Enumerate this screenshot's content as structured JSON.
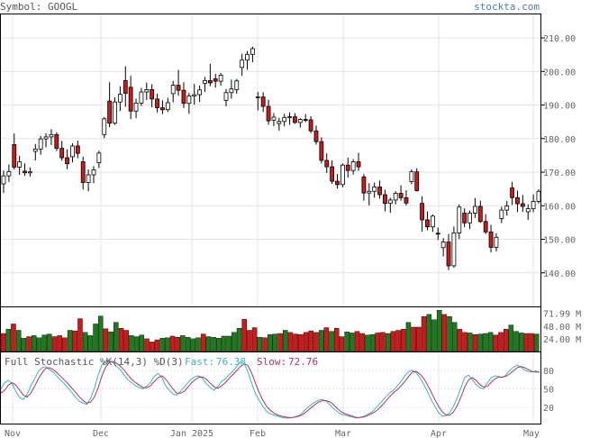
{
  "header": {
    "symbol_label": "Symbol: GOOGL",
    "site": "stockta.com"
  },
  "colors": {
    "up": "#1f7a1f",
    "down": "#cc1a1a",
    "up_fill": "#ffffff",
    "stoch_fast": "#3cb3c7",
    "stoch_slow": "#b0335a"
  },
  "chart_data": [
    {
      "type": "candlestick",
      "title": "",
      "x_ticks": [
        "Nov",
        "Dec",
        "Jan 2025",
        "Feb",
        "Mar",
        "Apr",
        "May"
      ],
      "y_ticks": [
        "210.00",
        "200.00",
        "190.00",
        "180.00",
        "170.00",
        "160.00",
        "150.00",
        "140.00"
      ],
      "ylim": [
        130,
        217
      ],
      "grid": true,
      "ohlc": [
        [
          166.5,
          170.5,
          163.8,
          168.9
        ],
        [
          168.9,
          172.3,
          167.1,
          170.2
        ],
        [
          178.2,
          181.5,
          170.8,
          171.5
        ],
        [
          171.5,
          174.9,
          169.2,
          173.1
        ],
        [
          170.3,
          172.6,
          168.9,
          169.8
        ],
        [
          169.8,
          171.4,
          168.7,
          170.1
        ],
        [
          176.2,
          178.4,
          173.5,
          176.9
        ],
        [
          176.9,
          180.8,
          175.2,
          179.9
        ],
        [
          179.9,
          181.6,
          177.4,
          180.5
        ],
        [
          180.5,
          182.8,
          178.1,
          181.2
        ],
        [
          181.2,
          181.9,
          176.3,
          177.1
        ],
        [
          177.1,
          179.3,
          173.4,
          174.3
        ],
        [
          174.3,
          176.8,
          170.9,
          172.5
        ],
        [
          174.6,
          178.6,
          172.9,
          177.8
        ],
        [
          177.8,
          179.4,
          174.2,
          175.6
        ],
        [
          173.1,
          174.6,
          164.8,
          166.9
        ],
        [
          166.9,
          170.8,
          164.3,
          169.2
        ],
        [
          169.2,
          171.8,
          166.7,
          170.7
        ],
        [
          172.8,
          176.4,
          171.2,
          175.7
        ],
        [
          181.2,
          186.4,
          180.1,
          185.9
        ],
        [
          191.2,
          196.8,
          183.4,
          184.6
        ],
        [
          184.6,
          192.3,
          184.1,
          190.9
        ],
        [
          190.9,
          195.6,
          188.2,
          193.2
        ],
        [
          197.3,
          201.6,
          189.5,
          193.5
        ],
        [
          195.3,
          198.7,
          185.8,
          188.2
        ],
        [
          188.2,
          191.9,
          186.1,
          190.6
        ],
        [
          190.6,
          195.1,
          189.7,
          193.9
        ],
        [
          193.9,
          196.7,
          191.5,
          194.6
        ],
        [
          194.6,
          196.2,
          189.3,
          191.8
        ],
        [
          191.8,
          193.4,
          187.8,
          189.2
        ],
        [
          189.2,
          191.4,
          187.3,
          188.6
        ],
        [
          188.6,
          192.2,
          187.9,
          190.7
        ],
        [
          193.4,
          197.2,
          190.8,
          195.9
        ],
        [
          195.9,
          200.5,
          192.8,
          194.4
        ],
        [
          194.4,
          196.8,
          189.1,
          190.5
        ],
        [
          190.5,
          193.6,
          187.4,
          192.7
        ],
        [
          192.7,
          196.3,
          190.1,
          193.1
        ],
        [
          193.1,
          195.8,
          190.9,
          194.5
        ],
        [
          196.5,
          198.4,
          193.9,
          197.3
        ],
        [
          197.3,
          202.3,
          195.6,
          196.6
        ],
        [
          197.8,
          199.3,
          195.2,
          197.1
        ],
        [
          197.1,
          199.6,
          195.8,
          198.9
        ],
        [
          191.4,
          194.8,
          189.6,
          193.7
        ],
        [
          193.7,
          197.6,
          191.9,
          194.8
        ],
        [
          194.6,
          197.8,
          193.4,
          197.2
        ],
        [
          201.2,
          205.3,
          198.7,
          203.4
        ],
        [
          203.4,
          206.1,
          200.5,
          205.1
        ],
        [
          205.1,
          207.4,
          202.8,
          206.8
        ],
        [
          192.3,
          193.9,
          188.4,
          192.4
        ],
        [
          192.4,
          193.8,
          187.9,
          189.6
        ],
        [
          189.6,
          191.6,
          184.1,
          185.3
        ],
        [
          185.5,
          187.6,
          183.7,
          186.4
        ],
        [
          184.5,
          186.2,
          182.4,
          185.1
        ],
        [
          185.1,
          187.4,
          183.6,
          186.3
        ],
        [
          186.3,
          187.8,
          184.1,
          186.5
        ],
        [
          186.5,
          187.6,
          184.4,
          184.8
        ],
        [
          184.8,
          186.1,
          183.3,
          185.7
        ],
        [
          185.7,
          187.3,
          184.9,
          185.6
        ],
        [
          185.6,
          186.7,
          181.6,
          182.3
        ],
        [
          182.3,
          183.9,
          178.2,
          179.1
        ],
        [
          179.1,
          180.4,
          172.6,
          173.5
        ],
        [
          173.5,
          175.6,
          169.8,
          171.6
        ],
        [
          171.6,
          173.5,
          166.5,
          167.3
        ],
        [
          167.3,
          169.5,
          165.1,
          166.3
        ],
        [
          166.3,
          172.6,
          165.5,
          172.1
        ],
        [
          172.1,
          174.3,
          168.4,
          170.5
        ],
        [
          170.5,
          173.9,
          169.3,
          173.1
        ],
        [
          173.1,
          175.8,
          170.4,
          171.6
        ],
        [
          168.6,
          169.4,
          161.5,
          163.8
        ],
        [
          163.8,
          166.7,
          160.1,
          164.3
        ],
        [
          164.3,
          166.9,
          162.4,
          165.6
        ],
        [
          165.6,
          167.5,
          162.1,
          163.3
        ],
        [
          163.3,
          164.8,
          158.3,
          160.7
        ],
        [
          160.7,
          162.4,
          157.9,
          161.7
        ],
        [
          161.7,
          164.3,
          160.4,
          163.7
        ],
        [
          163.7,
          166.1,
          161.5,
          162.4
        ],
        [
          162.4,
          164.6,
          160.1,
          160.8
        ],
        [
          167.2,
          170.8,
          166.4,
          170.1
        ],
        [
          170.1,
          171.2,
          164.2,
          164.5
        ],
        [
          160.7,
          162.8,
          152.3,
          155.8
        ],
        [
          155.8,
          158.3,
          152.7,
          153.7
        ],
        [
          153.7,
          157.4,
          152.2,
          156.9
        ],
        [
          151.8,
          153.5,
          149.8,
          151.6
        ],
        [
          147.5,
          150.3,
          144.9,
          149.2
        ],
        [
          149.2,
          151.6,
          140.8,
          142.1
        ],
        [
          142.1,
          153.8,
          141.5,
          151.9
        ],
        [
          151.9,
          160.4,
          150.1,
          159.6
        ],
        [
          157.8,
          159.2,
          153.6,
          154.9
        ],
        [
          154.9,
          158.6,
          153.1,
          157.8
        ],
        [
          157.8,
          162.3,
          156.4,
          159.8
        ],
        [
          159.8,
          161.5,
          154.9,
          155.3
        ],
        [
          155.3,
          157.5,
          151.6,
          152.2
        ],
        [
          152.2,
          154.3,
          146.1,
          147.6
        ],
        [
          147.6,
          151.8,
          146.4,
          150.6
        ],
        [
          156.2,
          159.7,
          154.8,
          158.7
        ],
        [
          158.7,
          161.4,
          157.1,
          159.9
        ],
        [
          165.3,
          167.1,
          160.2,
          162.4
        ],
        [
          162.4,
          164.5,
          158.1,
          160.6
        ],
        [
          160.6,
          163.2,
          158.2,
          159.8
        ],
        [
          158.2,
          160.4,
          155.8,
          159.1
        ],
        [
          159.1,
          163.4,
          158.1,
          161.3
        ],
        [
          161.3,
          164.9,
          160.6,
          164.3
        ]
      ]
    },
    {
      "type": "bar",
      "title": "",
      "y_ticks": [
        "71.99 M",
        "48.00 M",
        "24.00 M"
      ],
      "ylim": [
        0,
        80
      ],
      "values": [
        34,
        42,
        52,
        40,
        25,
        28,
        30,
        26,
        31,
        33,
        28,
        30,
        26,
        40,
        39,
        62,
        36,
        30,
        52,
        67,
        43,
        37,
        55,
        44,
        40,
        30,
        28,
        31,
        24,
        18,
        22,
        25,
        26,
        29,
        27,
        30,
        27,
        24,
        26,
        33,
        28,
        27,
        25,
        29,
        29,
        36,
        44,
        61,
        40,
        45,
        27,
        26,
        32,
        33,
        34,
        40,
        36,
        33,
        32,
        36,
        39,
        36,
        40,
        45,
        38,
        44,
        28,
        37,
        35,
        38,
        34,
        31,
        32,
        35,
        36,
        34,
        38,
        40,
        42,
        55,
        46,
        46,
        66,
        70,
        60,
        78,
        70,
        66,
        55,
        42,
        36,
        35,
        32,
        33,
        34,
        36,
        31,
        36,
        42,
        50,
        38,
        35,
        34,
        34,
        33
      ],
      "up": [
        false,
        true,
        false,
        true,
        true,
        false,
        true,
        true,
        true,
        true,
        false,
        false,
        false,
        true,
        false,
        false,
        true,
        true,
        true,
        true,
        false,
        true,
        true,
        false,
        false,
        true,
        true,
        true,
        false,
        false,
        false,
        true,
        true,
        false,
        false,
        true,
        true,
        true,
        true,
        false,
        true,
        true,
        true,
        true,
        true,
        true,
        true,
        false,
        false,
        false,
        true,
        false,
        true,
        true,
        false,
        true,
        false,
        false,
        false,
        false,
        false,
        false,
        true,
        false,
        true,
        false,
        false,
        true,
        true,
        false,
        false,
        true,
        true,
        false,
        false,
        true,
        false,
        false,
        false,
        true,
        false,
        false,
        false,
        true,
        true,
        true,
        false,
        true,
        true,
        false,
        false,
        true,
        false,
        true,
        true,
        true,
        false,
        false,
        false,
        true,
        true,
        true,
        false,
        false,
        true
      ]
    },
    {
      "type": "line",
      "title": "",
      "legend": {
        "title": "Full Stochastic %K(14,3) %D(3)",
        "fast_label": "Fast:",
        "fast_value": "76.38",
        "slow_label": "Slow:",
        "slow_value": "72.76"
      },
      "y_ticks": [
        "80",
        "50",
        "20"
      ],
      "ylim": [
        0,
        100
      ],
      "series": [
        {
          "name": "Fast",
          "values": [
            50,
            60,
            64,
            58,
            46,
            36,
            33,
            41,
            55,
            66,
            78,
            84,
            86,
            81,
            77,
            70,
            64,
            58,
            51,
            44,
            36,
            30,
            27,
            25,
            35,
            51,
            72,
            88,
            94,
            96,
            92,
            86,
            80,
            72,
            64,
            60,
            55,
            52,
            50,
            55,
            60,
            70,
            75,
            68,
            56,
            48,
            42,
            40,
            46,
            53,
            60,
            66,
            70,
            71,
            66,
            58,
            52,
            48,
            54,
            62,
            66,
            73,
            78,
            86,
            93,
            91,
            78,
            60,
            43,
            32,
            22,
            14,
            10,
            8,
            6,
            4,
            3,
            3,
            4,
            6,
            8,
            14,
            20,
            25,
            29,
            32,
            33,
            30,
            24,
            18,
            13,
            9,
            8,
            6,
            5,
            3,
            4,
            6,
            9,
            12,
            18,
            24,
            31,
            38,
            44,
            48,
            55,
            62,
            71,
            78,
            80,
            76,
            68,
            58,
            46,
            33,
            22,
            12,
            6,
            7,
            12,
            22,
            36,
            52,
            68,
            72,
            65,
            57,
            52,
            50,
            59,
            68,
            71,
            70,
            68,
            72,
            80,
            85,
            88,
            85,
            80,
            78,
            77,
            79,
            76
          ]
        },
        {
          "name": "Slow",
          "values": [
            43,
            48,
            56,
            60,
            56,
            48,
            40,
            37,
            43,
            54,
            66,
            76,
            83,
            84,
            81,
            76,
            70,
            64,
            58,
            51,
            44,
            37,
            31,
            27,
            29,
            37,
            52,
            71,
            85,
            93,
            94,
            91,
            86,
            80,
            72,
            65,
            60,
            56,
            52,
            52,
            55,
            62,
            68,
            71,
            66,
            58,
            50,
            43,
            43,
            46,
            53,
            60,
            65,
            69,
            69,
            65,
            59,
            53,
            51,
            55,
            60,
            67,
            73,
            79,
            86,
            90,
            88,
            76,
            60,
            45,
            32,
            22,
            16,
            11,
            8,
            6,
            5,
            4,
            4,
            5,
            7,
            10,
            15,
            20,
            25,
            29,
            31,
            31,
            29,
            24,
            18,
            13,
            10,
            8,
            6,
            4,
            4,
            5,
            7,
            10,
            13,
            18,
            24,
            31,
            38,
            44,
            49,
            55,
            62,
            70,
            77,
            78,
            74,
            67,
            57,
            45,
            33,
            22,
            13,
            8,
            8,
            13,
            23,
            37,
            53,
            64,
            68,
            64,
            57,
            53,
            54,
            60,
            66,
            69,
            69,
            70,
            74,
            79,
            84,
            86,
            84,
            81,
            78,
            77,
            77
          ]
        }
      ]
    }
  ]
}
